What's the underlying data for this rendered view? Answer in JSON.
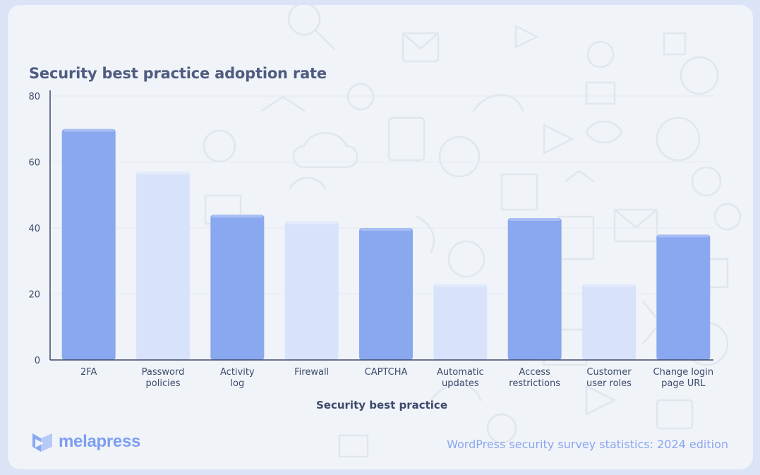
{
  "title": "Security best practice adoption rate",
  "chart_data": {
    "type": "bar",
    "title": "Security best practice adoption rate",
    "xlabel": "Security best practice",
    "ylabel": "",
    "ylim": [
      0,
      80
    ],
    "yticks": [
      "0",
      "20",
      "40",
      "60",
      "80"
    ],
    "categories": [
      [
        "2FA"
      ],
      [
        "Password",
        "policies"
      ],
      [
        "Activity",
        "log"
      ],
      [
        "Firewall"
      ],
      [
        "CAPTCHA"
      ],
      [
        "Automatic",
        "updates"
      ],
      [
        "Access",
        "restrictions"
      ],
      [
        "Customer",
        "user roles"
      ],
      [
        "Change login",
        "page URL"
      ]
    ],
    "values": [
      70,
      57,
      44,
      42,
      40,
      23,
      43,
      23,
      38
    ],
    "colors": [
      "#8aa8f0",
      "#d8e3fb",
      "#8aa8f0",
      "#d8e3fb",
      "#8aa8f0",
      "#d8e3fb",
      "#8aa8f0",
      "#d8e3fb",
      "#8aa8f0"
    ],
    "grid": true
  },
  "brand": {
    "name": "melapress",
    "color": "#7d9ef0"
  },
  "footer": {
    "caption": "WordPress security survey statistics: 2024 edition"
  }
}
